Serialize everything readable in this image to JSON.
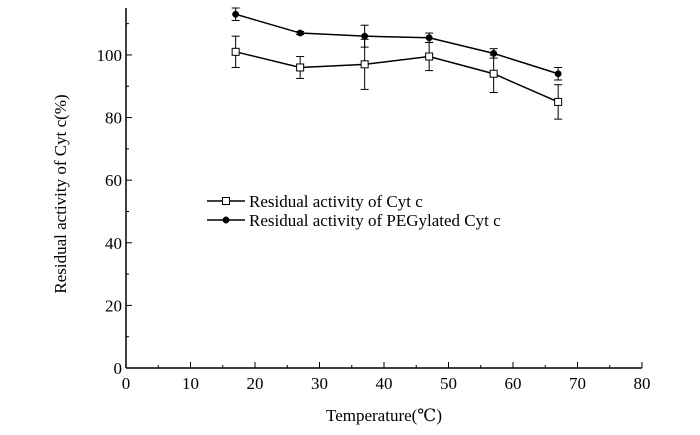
{
  "chart_data": {
    "type": "line",
    "title": "",
    "xlabel": "Temperature(℃)",
    "ylabel": "Residual activity of Cyt c(%)",
    "xlim": [
      0,
      80
    ],
    "ylim": [
      0,
      115
    ],
    "xticks": [
      0,
      10,
      20,
      30,
      40,
      50,
      60,
      70,
      80
    ],
    "yticks": [
      0,
      20,
      40,
      60,
      80,
      100
    ],
    "grid": false,
    "legend_position": "center-left",
    "x": [
      17,
      27,
      37,
      47,
      57,
      67
    ],
    "series": [
      {
        "name": "Residual activity of Cyt c",
        "marker": "open-square",
        "values": [
          101,
          96,
          97,
          99.5,
          94,
          85
        ],
        "errors": [
          5,
          3.5,
          8,
          4.5,
          6,
          5.5
        ]
      },
      {
        "name": "Residual activity of PEGylated Cyt c",
        "marker": "filled-circle",
        "values": [
          113,
          107,
          106,
          105.5,
          100.5,
          94
        ],
        "errors": [
          2,
          0.5,
          3.5,
          1.5,
          1.5,
          2
        ]
      }
    ]
  }
}
